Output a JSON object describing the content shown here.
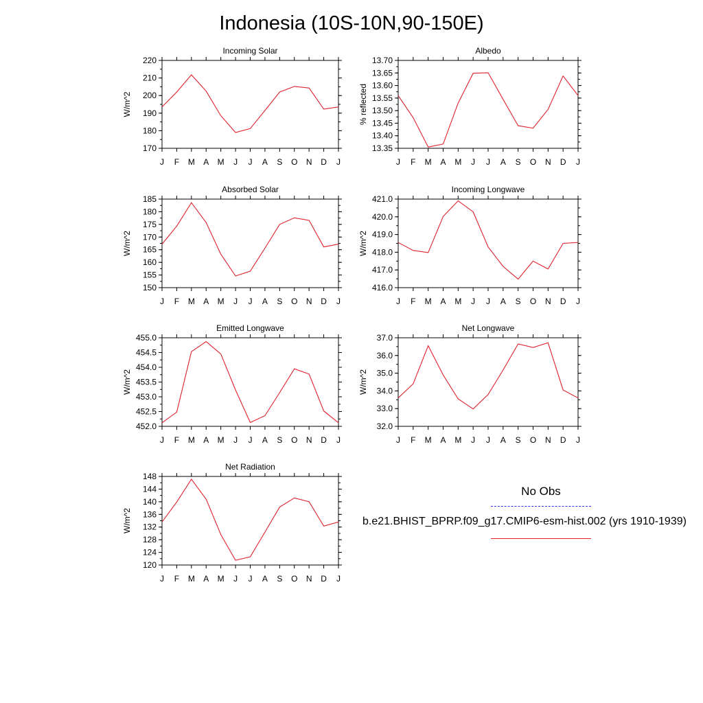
{
  "title": "Indonesia (10S-10N,90-150E)",
  "legend": {
    "obs_label": "No Obs",
    "obs_color": "#2f2fe0",
    "run_label": "b.e21.BHIST_BPRP.f09_g17.CMIP6-esm-hist.002 (yrs 1910-1939)",
    "run_color": "#e0202a"
  },
  "chart_data": [
    {
      "type": "line",
      "title": "Incoming Solar",
      "ylabel": "W/m^2",
      "categories": [
        "J",
        "F",
        "M",
        "A",
        "M",
        "J",
        "J",
        "A",
        "S",
        "O",
        "N",
        "D",
        "J"
      ],
      "ylim": [
        170,
        220
      ],
      "yticks": [
        "170",
        "180",
        "190",
        "200",
        "210",
        "220"
      ],
      "yminor": 5,
      "series": [
        {
          "values": [
            193.5,
            202,
            211.8,
            202.5,
            188.5,
            179,
            181.2,
            191.5,
            202,
            205.2,
            204.3,
            192.3,
            193.5
          ]
        }
      ]
    },
    {
      "type": "line",
      "title": "Albedo",
      "ylabel": "% reflected",
      "categories": [
        "J",
        "F",
        "M",
        "A",
        "M",
        "J",
        "J",
        "A",
        "S",
        "O",
        "N",
        "D",
        "J"
      ],
      "ylim": [
        13.35,
        13.7
      ],
      "yticks": [
        "13.35",
        "13.40",
        "13.45",
        "13.50",
        "13.55",
        "13.60",
        "13.65",
        "13.70"
      ],
      "yminor": 0.025,
      "series": [
        {
          "values": [
            13.56,
            13.472,
            13.355,
            13.367,
            13.53,
            13.649,
            13.651,
            13.545,
            13.44,
            13.43,
            13.505,
            13.638,
            13.56
          ]
        }
      ]
    },
    {
      "type": "line",
      "title": "Absorbed Solar",
      "ylabel": "W/m^2",
      "categories": [
        "J",
        "F",
        "M",
        "A",
        "M",
        "J",
        "J",
        "A",
        "S",
        "O",
        "N",
        "D",
        "J"
      ],
      "ylim": [
        150,
        185
      ],
      "yticks": [
        "150",
        "155",
        "160",
        "165",
        "170",
        "175",
        "180",
        "185"
      ],
      "yminor": 2.5,
      "series": [
        {
          "values": [
            167.2,
            174.3,
            183.6,
            175.7,
            163.2,
            154.6,
            156.5,
            165.6,
            175,
            177.6,
            176.6,
            166.1,
            167.2
          ]
        }
      ]
    },
    {
      "type": "line",
      "title": "Incoming Longwave",
      "ylabel": "W/m^2",
      "categories": [
        "J",
        "F",
        "M",
        "A",
        "M",
        "J",
        "J",
        "A",
        "S",
        "O",
        "N",
        "D",
        "J"
      ],
      "ylim": [
        416.0,
        421.0
      ],
      "yticks": [
        "416.0",
        "417.0",
        "418.0",
        "419.0",
        "420.0",
        "421.0"
      ],
      "yminor": 0.5,
      "series": [
        {
          "values": [
            418.55,
            418.1,
            417.98,
            420.02,
            420.9,
            420.28,
            418.3,
            417.2,
            416.48,
            417.5,
            417.05,
            418.5,
            418.55
          ]
        }
      ]
    },
    {
      "type": "line",
      "title": "Emitted Longwave",
      "ylabel": "W/m^2",
      "categories": [
        "J",
        "F",
        "M",
        "A",
        "M",
        "J",
        "J",
        "A",
        "S",
        "O",
        "N",
        "D",
        "J"
      ],
      "ylim": [
        452.0,
        455.0
      ],
      "yticks": [
        "452.0",
        "452.5",
        "453.0",
        "453.5",
        "454.0",
        "454.5",
        "455.0"
      ],
      "yminor": 0.25,
      "series": [
        {
          "values": [
            452.12,
            452.48,
            454.53,
            454.87,
            454.45,
            453.23,
            452.13,
            452.36,
            453.14,
            453.95,
            453.77,
            452.52,
            452.12
          ]
        }
      ]
    },
    {
      "type": "line",
      "title": "Net Longwave",
      "ylabel": "W/m^2",
      "categories": [
        "J",
        "F",
        "M",
        "A",
        "M",
        "J",
        "J",
        "A",
        "S",
        "O",
        "N",
        "D",
        "J"
      ],
      "ylim": [
        32.0,
        37.0
      ],
      "yticks": [
        "32.0",
        "33.0",
        "34.0",
        "35.0",
        "36.0",
        "37.0"
      ],
      "yminor": 0.5,
      "series": [
        {
          "values": [
            33.6,
            34.4,
            36.55,
            34.9,
            33.55,
            32.98,
            33.8,
            35.18,
            36.65,
            36.45,
            36.72,
            34.05,
            33.6
          ]
        }
      ]
    },
    {
      "type": "line",
      "title": "Net Radiation",
      "ylabel": "W/m^2",
      "categories": [
        "J",
        "F",
        "M",
        "A",
        "M",
        "J",
        "J",
        "A",
        "S",
        "O",
        "N",
        "D",
        "J"
      ],
      "ylim": [
        120,
        148
      ],
      "yticks": [
        "120",
        "124",
        "128",
        "132",
        "136",
        "140",
        "144",
        "148"
      ],
      "yminor": 2,
      "series": [
        {
          "values": [
            133.6,
            139.9,
            147.1,
            140.8,
            129.6,
            121.5,
            122.6,
            130.4,
            138.3,
            141.2,
            140,
            132.3,
            133.6
          ]
        }
      ]
    }
  ]
}
